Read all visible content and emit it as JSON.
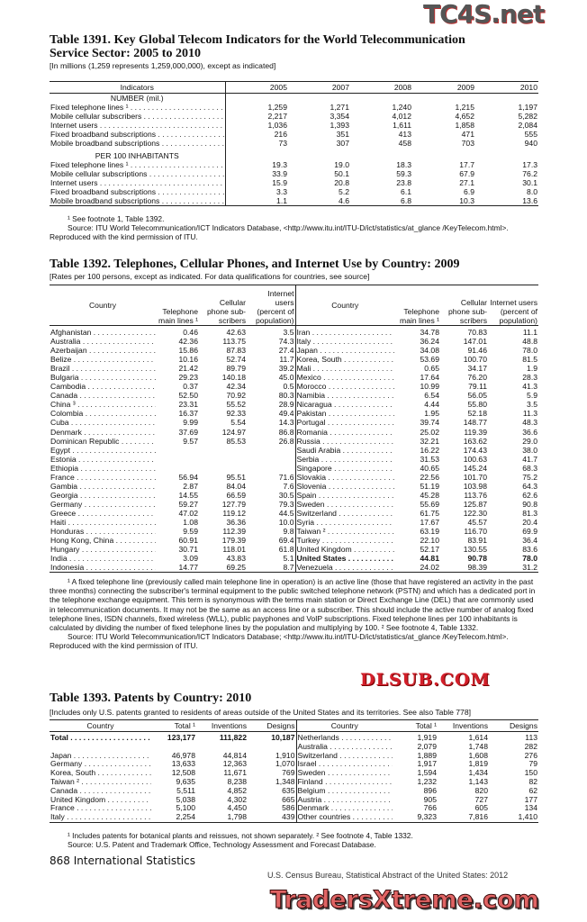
{
  "logos": {
    "top": "TC4S.net",
    "middle": "DLSUB.COM",
    "bottom": "TradersXtreme.com"
  },
  "t1391": {
    "title1": "Table 1391. Key Global Telecom Indicators for the World Telecommunication",
    "title2": "Service Sector: 2005 to 2010",
    "subtitle": "[In millions (1,259 represents 1,259,000,000), except as indicated]",
    "headers": [
      "Indicators",
      "2005",
      "2007",
      "2008",
      "2009",
      "2010"
    ],
    "rows": [
      {
        "label": "NUMBER (mil.)",
        "section": true,
        "values": []
      },
      {
        "label": "Fixed telephone lines ¹",
        "values": [
          "1,259",
          "1,271",
          "1,240",
          "1,215",
          "1,197"
        ]
      },
      {
        "label": "Mobile cellular subscribers",
        "values": [
          "2,217",
          "3,354",
          "4,012",
          "4,652",
          "5,282"
        ]
      },
      {
        "label": "Internet users",
        "values": [
          "1,036",
          "1,393",
          "1,611",
          "1,858",
          "2,084"
        ]
      },
      {
        "label": "Fixed broadband subscriptions",
        "values": [
          "216",
          "351",
          "413",
          "471",
          "555"
        ]
      },
      {
        "label": "Mobile broadband subscriptions",
        "values": [
          "73",
          "307",
          "458",
          "703",
          "940"
        ]
      },
      {
        "label": "PER 100 INHABITANTS",
        "section": true,
        "values": []
      },
      {
        "label": "Fixed telephone lines ¹",
        "values": [
          "19.3",
          "19.0",
          "18.3",
          "17.7",
          "17.3"
        ]
      },
      {
        "label": "Mobile cellular subscriptions",
        "values": [
          "33.9",
          "50.1",
          "59.3",
          "67.9",
          "76.2"
        ]
      },
      {
        "label": "Internet users",
        "values": [
          "15.9",
          "20.8",
          "23.8",
          "27.1",
          "30.1"
        ]
      },
      {
        "label": "Fixed broadband subscriptions",
        "values": [
          "3.3",
          "5.2",
          "6.1",
          "6.9",
          "8.0"
        ]
      },
      {
        "label": "Mobile broadband subscriptions",
        "values": [
          "1.1",
          "4.6",
          "6.8",
          "10.3",
          "13.6"
        ]
      }
    ],
    "footnote": "¹ See footnote 1, Table 1392.",
    "source": "Source: ITU World Telecommunication/ICT Indicators Database, <http://www.itu.int/ITU-D/ict/statistics/at_glance /KeyTelecom.html>. Reproduced with the kind permission of ITU."
  },
  "t1392": {
    "title": "Table 1392. Telephones, Cellular Phones, and Internet Use by Country: 2009",
    "subtitle": "[Rates per 100 persons, except as indicated. For data qualifications for countries, see source]",
    "headers": [
      "Country",
      "Telephone main lines ¹",
      "Cellular phone sub-scribers",
      "Internet users (percent of population)"
    ],
    "left": [
      [
        "Afghanistan",
        "0.46",
        "42.63",
        "3.5"
      ],
      [
        "Australia",
        "42.36",
        "113.75",
        "74.3"
      ],
      [
        "Azerbaijan",
        "15.86",
        "87.83",
        "27.4"
      ],
      [
        "Belize",
        "10.16",
        "52.74",
        "11.7"
      ],
      [
        "Brazil",
        "21.42",
        "89.79",
        "39.2"
      ],
      [
        "Bulgaria",
        "29.23",
        "140.18",
        "45.0"
      ],
      [
        "Cambodia",
        "0.37",
        "42.34",
        "0.5"
      ],
      [
        "Canada",
        "52.50",
        "70.92",
        "80.3"
      ],
      [
        "China ³",
        "23.31",
        "55.52",
        "28.9"
      ],
      [
        "Colombia",
        "16.37",
        "92.33",
        "49.4"
      ],
      [
        "Cuba",
        "9.99",
        "5.54",
        "14.3"
      ],
      [
        "Denmark",
        "37.69",
        "124.97",
        "86.8"
      ],
      [
        "Dominican Republic",
        "9.57",
        "85.53",
        "26.8"
      ],
      [
        "Egypt",
        "",
        "",
        ""
      ],
      [
        "Estonia",
        "",
        "",
        ""
      ],
      [
        "Ethiopia",
        "",
        "",
        ""
      ],
      [
        "France",
        "56.94",
        "95.51",
        "71.6"
      ],
      [
        "Gambia",
        "2.87",
        "84.04",
        "7.6"
      ],
      [
        "Georgia",
        "14.55",
        "66.59",
        "30.5"
      ],
      [
        "Germany",
        "59.27",
        "127.79",
        "79.3"
      ],
      [
        "Greece",
        "47.02",
        "119.12",
        "44.5"
      ],
      [
        "Haiti",
        "1.08",
        "36.36",
        "10.0"
      ],
      [
        "Honduras",
        "9.59",
        "112.39",
        "9.8"
      ],
      [
        "Hong Kong, China",
        "60.91",
        "179.39",
        "69.4"
      ],
      [
        "Hungary",
        "30.71",
        "118.01",
        "61.8"
      ],
      [
        "India",
        "3.09",
        "43.83",
        "5.1"
      ],
      [
        "Indonesia",
        "14.77",
        "69.25",
        "8.7"
      ]
    ],
    "right": [
      [
        "Iran",
        "34.78",
        "70.83",
        "11.1"
      ],
      [
        "Italy",
        "36.24",
        "147.01",
        "48.8"
      ],
      [
        "Japan",
        "34.08",
        "91.46",
        "78.0"
      ],
      [
        "Korea, South",
        "53.69",
        "100.70",
        "81.5"
      ],
      [
        "Mali",
        "0.65",
        "34.17",
        "1.9"
      ],
      [
        "Mexico",
        "17.64",
        "76.20",
        "28.3"
      ],
      [
        "Morocco",
        "10.99",
        "79.11",
        "41.3"
      ],
      [
        "Namibia",
        "6.54",
        "56.05",
        "5.9"
      ],
      [
        "Nicaragua",
        "4.44",
        "55.80",
        "3.5"
      ],
      [
        "Pakistan",
        "1.95",
        "52.18",
        "11.3"
      ],
      [
        "Portugal",
        "39.74",
        "148.77",
        "48.3"
      ],
      [
        "Romania",
        "25.02",
        "119.39",
        "36.6"
      ],
      [
        "Russia",
        "32.21",
        "163.62",
        "29.0"
      ],
      [
        "Saudi Arabia",
        "16.22",
        "174.43",
        "38.0"
      ],
      [
        "Serbia",
        "31.53",
        "100.63",
        "41.7"
      ],
      [
        "Singapore",
        "40.65",
        "145.24",
        "68.3"
      ],
      [
        "Slovakia",
        "22.56",
        "101.70",
        "75.2"
      ],
      [
        "Slovenia",
        "51.19",
        "103.98",
        "64.3"
      ],
      [
        "Spain",
        "45.28",
        "113.76",
        "62.6"
      ],
      [
        "Sweden",
        "55.69",
        "125.87",
        "90.8"
      ],
      [
        "Switzerland",
        "61.75",
        "122.30",
        "81.3"
      ],
      [
        "Syria",
        "17.67",
        "45.57",
        "20.4"
      ],
      [
        "Taiwan ²",
        "63.19",
        "116.70",
        "69.9"
      ],
      [
        "Turkey",
        "22.10",
        "83.91",
        "36.4"
      ],
      [
        "United Kingdom",
        "52.17",
        "130.55",
        "83.6"
      ],
      [
        "United States",
        "44.81",
        "90.78",
        "78.0"
      ],
      [
        "Venezuela",
        "24.02",
        "98.39",
        "31.2"
      ]
    ],
    "bold_right_row": "United States",
    "footnote": "¹ A fixed telephone line (previously called main telephone line in operation) is an active line (those that have registered an activity in the past three months) connecting the subscriber's terminal equipment to the public switched telephone network (PSTN) and which has a dedicated port in the telephone exchange equipment. This term is synonymous with the terms main station or Direct Exchange Line (DEL) that are commonly used in telecommunication documents. It may not be the same as an access line or a subscriber. This should include the active number of analog fixed telephone lines, ISDN channels, fixed wireless (WLL), public payphones and VoIP subscriptions. Fixed telephone lines per 100 inhabitants is calculated by dividing the number of fixed telephone lines by the population and multiplying by 100. ² See footnote 4, Table 1332.",
    "source": "Source: ITU World Telecommunication/ICT Indicators Database; <http://www.itu.int/ITU-D/ict/statistics/at_glance /KeyTelecom.html>. Reproduced with the kind permission of ITU."
  },
  "t1393": {
    "title": "Table 1393. Patents by Country: 2010",
    "subtitle": "[Includes only U.S. patents granted to residents of areas outside of the United States and its territories. See also Table 778]",
    "headers": [
      "Country",
      "Total ¹",
      "Inventions",
      "Designs"
    ],
    "left": [
      [
        "Total",
        "123,177",
        "111,822",
        "10,187"
      ],
      [
        "",
        "",
        "",
        ""
      ],
      [
        "Japan",
        "46,978",
        "44,814",
        "1,910"
      ],
      [
        "Germany",
        "13,633",
        "12,363",
        "1,070"
      ],
      [
        "Korea, South",
        "12,508",
        "11,671",
        "769"
      ],
      [
        "Taiwan ²",
        "9,635",
        "8,238",
        "1,348"
      ],
      [
        "Canada",
        "5,511",
        "4,852",
        "635"
      ],
      [
        "United Kingdom",
        "5,038",
        "4,302",
        "665"
      ],
      [
        "France",
        "5,100",
        "4,450",
        "586"
      ],
      [
        "Italy",
        "2,254",
        "1,798",
        "439"
      ]
    ],
    "right": [
      [
        "Netherlands",
        "1,919",
        "1,614",
        "113"
      ],
      [
        "Australia",
        "2,079",
        "1,748",
        "282"
      ],
      [
        "Switzerland",
        "1,889",
        "1,608",
        "276"
      ],
      [
        "Israel",
        "1,917",
        "1,819",
        "79"
      ],
      [
        "Sweden",
        "1,594",
        "1,434",
        "150"
      ],
      [
        "Finland",
        "1,232",
        "1,143",
        "82"
      ],
      [
        "Belgium",
        "896",
        "820",
        "62"
      ],
      [
        "Austria",
        "905",
        "727",
        "177"
      ],
      [
        "Denmark",
        "766",
        "605",
        "134"
      ],
      [
        "Other countries",
        "9,323",
        "7,816",
        "1,410"
      ]
    ],
    "footnote": "¹ Includes patents for botanical plants and reissues, not shown separately. ² See footnote 4, Table 1332.",
    "source": "Source: U.S. Patent and Trademark Office, Technology Assessment and Forecast Database."
  },
  "footer": {
    "page": "868  International Statistics",
    "publication": "U.S. Census Bureau, Statistical Abstract of the United States: 2012"
  }
}
